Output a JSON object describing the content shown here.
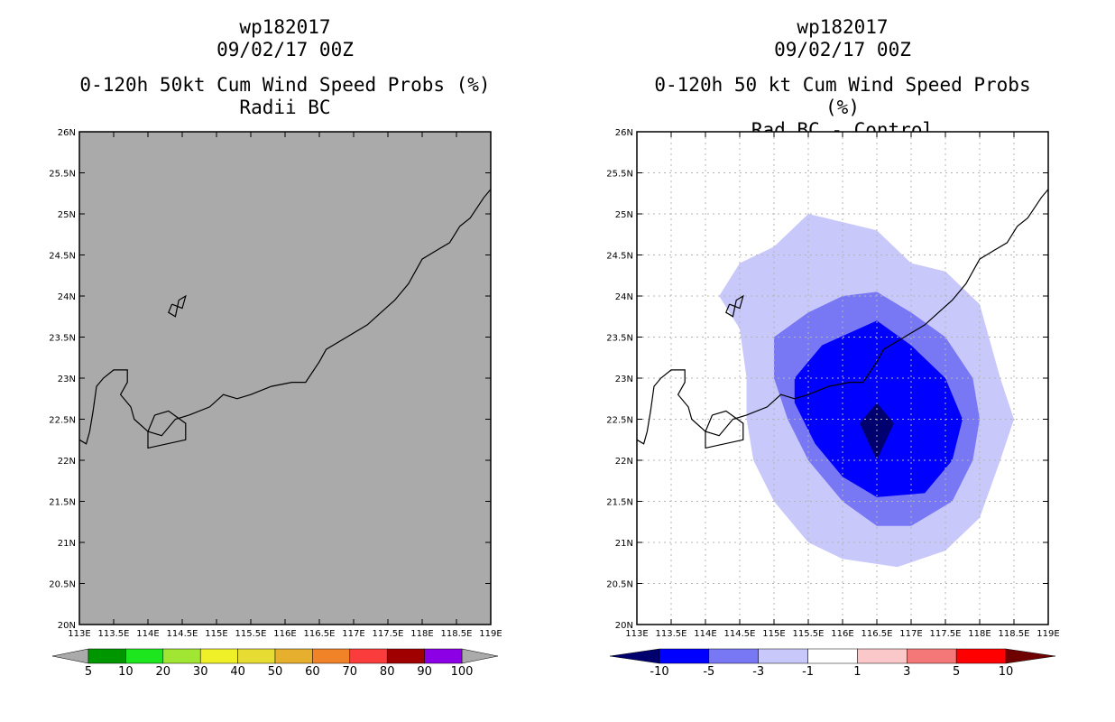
{
  "panels": [
    {
      "title_lines": [
        "wp182017",
        "09/02/17 00Z",
        "0-120h 50kt Cum Wind Speed Probs (%)",
        "Radii BC"
      ],
      "chart_data": {
        "type": "heatmap",
        "variable": "0-120h 50kt cumulative wind speed probability (%)",
        "x_ticks": [
          "113E",
          "113.5E",
          "114E",
          "114.5E",
          "115E",
          "115.5E",
          "116E",
          "116.5E",
          "117E",
          "117.5E",
          "118E",
          "118.5E",
          "119E"
        ],
        "y_ticks": [
          "20N",
          "20.5N",
          "21N",
          "21.5N",
          "22N",
          "22.5N",
          "23N",
          "23.5N",
          "24N",
          "24.5N",
          "25N",
          "25.5N",
          "26N"
        ],
        "xlim": [
          113,
          119
        ],
        "ylim": [
          20,
          26
        ],
        "background_color": "#aaaaaa",
        "grid": false,
        "contours": [],
        "colorbar": {
          "labels": [
            "5",
            "10",
            "20",
            "30",
            "40",
            "50",
            "60",
            "70",
            "80",
            "90",
            "100"
          ],
          "colors": [
            "#009600",
            "#1ee61e",
            "#a0e632",
            "#f0f028",
            "#e6dc32",
            "#e6af2d",
            "#f08228",
            "#fa3c3c",
            "#a00000",
            "#8c00e6"
          ],
          "end_color": "#aaaaaa",
          "end_type": "triangle"
        }
      }
    },
    {
      "title_lines": [
        "wp182017",
        "09/02/17 00Z",
        "0-120h 50 kt Cum Wind Speed Probs (%)",
        "Rad BC - Control"
      ],
      "chart_data": {
        "type": "heatmap",
        "variable": "difference of 0-120h 50kt cumulative wind speed probability (%)",
        "x_ticks": [
          "113E",
          "113.5E",
          "114E",
          "114.5E",
          "115E",
          "115.5E",
          "116E",
          "116.5E",
          "117E",
          "117.5E",
          "118E",
          "118.5E",
          "119E"
        ],
        "y_ticks": [
          "20N",
          "20.5N",
          "21N",
          "21.5N",
          "22N",
          "22.5N",
          "23N",
          "23.5N",
          "24N",
          "24.5N",
          "25N",
          "25.5N",
          "26N"
        ],
        "xlim": [
          113,
          119
        ],
        "ylim": [
          20,
          26
        ],
        "background_color": "#ffffff",
        "grid": true,
        "contours": [
          {
            "level": "-1 to -3",
            "color": "#c8c8fa",
            "points": [
              [
                114.2,
                24.0
              ],
              [
                114.5,
                24.4
              ],
              [
                115.0,
                24.6
              ],
              [
                115.5,
                25.0
              ],
              [
                116.5,
                24.8
              ],
              [
                117.0,
                24.4
              ],
              [
                117.5,
                24.3
              ],
              [
                118.0,
                23.9
              ],
              [
                118.3,
                23.0
              ],
              [
                118.5,
                22.5
              ],
              [
                118.3,
                22.0
              ],
              [
                118.0,
                21.3
              ],
              [
                117.5,
                20.9
              ],
              [
                116.8,
                20.7
              ],
              [
                116.0,
                20.8
              ],
              [
                115.5,
                21.0
              ],
              [
                115.0,
                21.5
              ],
              [
                114.7,
                22.0
              ],
              [
                114.6,
                22.5
              ],
              [
                114.6,
                23.0
              ],
              [
                114.5,
                23.6
              ],
              [
                114.2,
                24.0
              ]
            ]
          },
          {
            "level": "-3 to -5",
            "color": "#7878f5",
            "points": [
              [
                115.0,
                23.5
              ],
              [
                115.5,
                23.8
              ],
              [
                116.0,
                24.0
              ],
              [
                116.5,
                24.05
              ],
              [
                117.0,
                23.8
              ],
              [
                117.5,
                23.5
              ],
              [
                117.9,
                23.0
              ],
              [
                118.0,
                22.5
              ],
              [
                117.9,
                22.0
              ],
              [
                117.6,
                21.5
              ],
              [
                117.0,
                21.2
              ],
              [
                116.5,
                21.2
              ],
              [
                116.0,
                21.5
              ],
              [
                115.5,
                22.0
              ],
              [
                115.2,
                22.5
              ],
              [
                115.0,
                23.0
              ],
              [
                115.0,
                23.5
              ]
            ]
          },
          {
            "level": "-5 to -10",
            "color": "#0000ff",
            "points": [
              [
                115.3,
                23.0
              ],
              [
                115.7,
                23.4
              ],
              [
                116.5,
                23.7
              ],
              [
                117.0,
                23.4
              ],
              [
                117.5,
                23.0
              ],
              [
                117.75,
                22.5
              ],
              [
                117.6,
                22.0
              ],
              [
                117.2,
                21.6
              ],
              [
                116.5,
                21.55
              ],
              [
                116.0,
                21.8
              ],
              [
                115.6,
                22.2
              ],
              [
                115.3,
                22.7
              ],
              [
                115.3,
                23.0
              ]
            ]
          },
          {
            "level": "< -10",
            "color": "#00006e",
            "points": [
              [
                116.5,
                22.7
              ],
              [
                116.75,
                22.45
              ],
              [
                116.5,
                22.0
              ],
              [
                116.25,
                22.45
              ],
              [
                116.5,
                22.7
              ]
            ]
          }
        ],
        "colorbar": {
          "labels": [
            "-10",
            "-5",
            "-3",
            "-1",
            "1",
            "3",
            "5",
            "10"
          ],
          "colors": [
            "#0000ff",
            "#7878f5",
            "#c8c8fa",
            "#ffffff",
            "#fac8c8",
            "#f57878",
            "#ff0000"
          ],
          "end_colors": [
            "#00006e",
            "#6e0000"
          ],
          "end_type": "triangle"
        }
      }
    }
  ]
}
